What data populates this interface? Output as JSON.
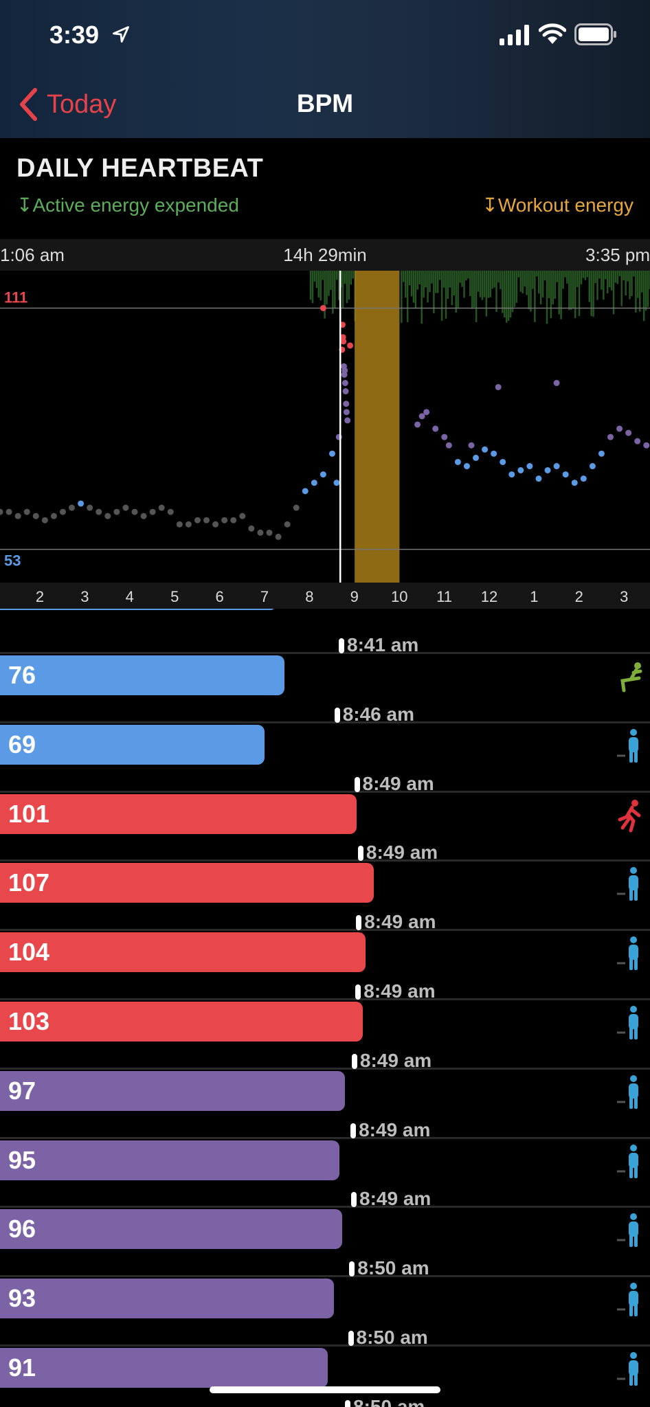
{
  "status_bar": {
    "time": "3:39"
  },
  "nav": {
    "back_label": "Today",
    "title": "BPM"
  },
  "section": {
    "title": "DAILY HEARTBEAT",
    "legend_active": "↧Active energy expended",
    "legend_workout": "↧Workout energy"
  },
  "range": {
    "start": "1:06 am",
    "duration": "14h 29min",
    "end": "3:35 pm"
  },
  "colors": {
    "accent": "#e5424a",
    "low": "#5b9be6",
    "high": "#e8474b",
    "mid": "#7c63a6",
    "rest": "#555555",
    "active_energy": "#2f6a2c",
    "workout_energy": "#a67c16"
  },
  "chart_data": {
    "type": "scatter",
    "title": "DAILY HEARTBEAT",
    "x_ticks": [
      "2",
      "3",
      "4",
      "5",
      "6",
      "7",
      "8",
      "9",
      "10",
      "11",
      "12",
      "1",
      "2",
      "3"
    ],
    "x_range_hours": [
      1.1,
      15.58
    ],
    "y_range": [
      45,
      120
    ],
    "reference_lines": [
      111,
      53
    ],
    "workout_span_hours": [
      9.0,
      10.0
    ],
    "cursor_hour": 8.68,
    "series": [
      {
        "points": [
          [
            1.1,
            62
          ],
          [
            1.3,
            62
          ],
          [
            1.5,
            61
          ],
          [
            1.7,
            62
          ],
          [
            1.9,
            61
          ],
          [
            2.1,
            60
          ],
          [
            2.3,
            61
          ],
          [
            2.5,
            62
          ],
          [
            2.7,
            63
          ],
          [
            2.9,
            64
          ],
          [
            3.1,
            63
          ],
          [
            3.3,
            62
          ],
          [
            3.5,
            61
          ],
          [
            3.7,
            62
          ],
          [
            3.9,
            63
          ],
          [
            4.1,
            62
          ],
          [
            4.3,
            61
          ],
          [
            4.5,
            62
          ],
          [
            4.7,
            63
          ],
          [
            4.9,
            62
          ],
          [
            5.1,
            59
          ],
          [
            5.3,
            59
          ],
          [
            5.5,
            60
          ],
          [
            5.7,
            60
          ],
          [
            5.9,
            59
          ],
          [
            6.1,
            60
          ],
          [
            6.3,
            60
          ],
          [
            6.5,
            61
          ],
          [
            6.7,
            58
          ],
          [
            6.9,
            57
          ],
          [
            7.1,
            57
          ],
          [
            7.3,
            56
          ],
          [
            7.5,
            59
          ],
          [
            7.7,
            63
          ],
          [
            7.9,
            67
          ],
          [
            8.1,
            69
          ],
          [
            8.3,
            71
          ],
          [
            8.5,
            76
          ],
          [
            8.6,
            69
          ],
          [
            8.65,
            80
          ],
          [
            8.72,
            101
          ],
          [
            8.73,
            107
          ],
          [
            8.74,
            104
          ],
          [
            8.75,
            103
          ],
          [
            8.76,
            97
          ],
          [
            8.77,
            95
          ],
          [
            8.78,
            96
          ],
          [
            8.79,
            93
          ],
          [
            8.8,
            91
          ],
          [
            8.81,
            88
          ],
          [
            8.82,
            86
          ],
          [
            8.84,
            84
          ],
          [
            8.9,
            102
          ],
          [
            8.3,
            111
          ],
          [
            10.4,
            83
          ],
          [
            10.5,
            85
          ],
          [
            10.6,
            86
          ],
          [
            10.8,
            82
          ],
          [
            11.0,
            80
          ],
          [
            11.1,
            78
          ],
          [
            11.3,
            74
          ],
          [
            11.5,
            73
          ],
          [
            11.7,
            75
          ],
          [
            11.9,
            77
          ],
          [
            12.1,
            76
          ],
          [
            12.3,
            74
          ],
          [
            12.5,
            71
          ],
          [
            12.7,
            72
          ],
          [
            12.9,
            73
          ],
          [
            13.1,
            70
          ],
          [
            13.3,
            72
          ],
          [
            13.5,
            73
          ],
          [
            13.7,
            71
          ],
          [
            13.9,
            69
          ],
          [
            14.1,
            70
          ],
          [
            14.3,
            73
          ],
          [
            14.5,
            76
          ],
          [
            14.7,
            80
          ],
          [
            14.9,
            82
          ],
          [
            15.1,
            81
          ],
          [
            15.3,
            79
          ],
          [
            15.5,
            78
          ],
          [
            11.6,
            78
          ],
          [
            12.2,
            92
          ],
          [
            13.5,
            93
          ]
        ]
      }
    ]
  },
  "readings": [
    {
      "time": "8:41 am",
      "value": "76",
      "icon": "sitting-person-icon"
    },
    {
      "time": "8:46 am",
      "value": "69",
      "icon": "standing-person-icon"
    },
    {
      "time": "8:49 am",
      "value": "101",
      "icon": "running-person-icon"
    },
    {
      "time": "8:49 am",
      "value": "107",
      "icon": "standing-person-icon"
    },
    {
      "time": "8:49 am",
      "value": "104",
      "icon": "standing-person-icon"
    },
    {
      "time": "8:49 am",
      "value": "103",
      "icon": "standing-person-icon"
    },
    {
      "time": "8:49 am",
      "value": "97",
      "icon": "standing-person-icon"
    },
    {
      "time": "8:49 am",
      "value": "95",
      "icon": "standing-person-icon"
    },
    {
      "time": "8:49 am",
      "value": "96",
      "icon": "standing-person-icon"
    },
    {
      "time": "8:50 am",
      "value": "93",
      "icon": "standing-person-icon"
    },
    {
      "time": "8:50 am",
      "value": "91",
      "icon": "standing-person-icon"
    },
    {
      "time": "8:50 am",
      "value": "",
      "icon": ""
    }
  ]
}
